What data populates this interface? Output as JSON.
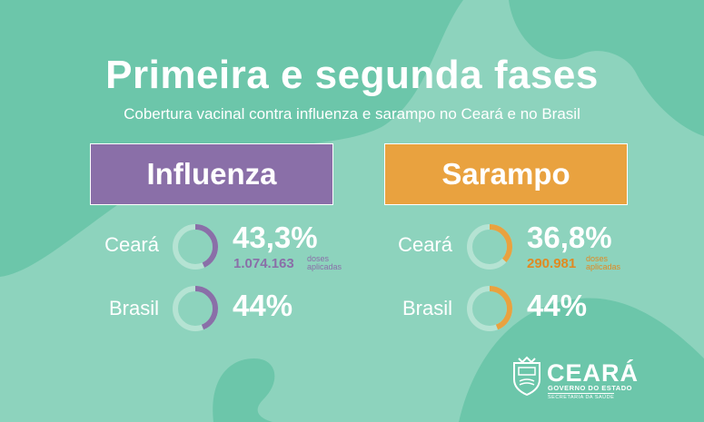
{
  "title": "Primeira e segunda fases",
  "subtitle": "Cobertura vacinal contra influenza e sarampo no Ceará e no Brasil",
  "colors": {
    "background": "#8dd3bd",
    "influenza": "#8a6fa8",
    "sarampo": "#e9a23f"
  },
  "influenza": {
    "label": "Influenza",
    "ceara": {
      "place": "Ceará",
      "percent_text": "43,3%",
      "percent": 43.3,
      "doses": "1.074.163",
      "doses_label_1": "doses",
      "doses_label_2": "aplicadas"
    },
    "brasil": {
      "place": "Brasil",
      "percent_text": "44%",
      "percent": 44
    }
  },
  "sarampo": {
    "label": "Sarampo",
    "ceara": {
      "place": "Ceará",
      "percent_text": "36,8%",
      "percent": 36.8,
      "doses": "290.981",
      "doses_label_1": "doses",
      "doses_label_2": "aplicadas"
    },
    "brasil": {
      "place": "Brasil",
      "percent_text": "44%",
      "percent": 44
    }
  },
  "logo": {
    "name": "CEARÁ",
    "line1": "GOVERNO DO ESTADO",
    "line2": "SECRETARIA DA SAÚDE"
  }
}
